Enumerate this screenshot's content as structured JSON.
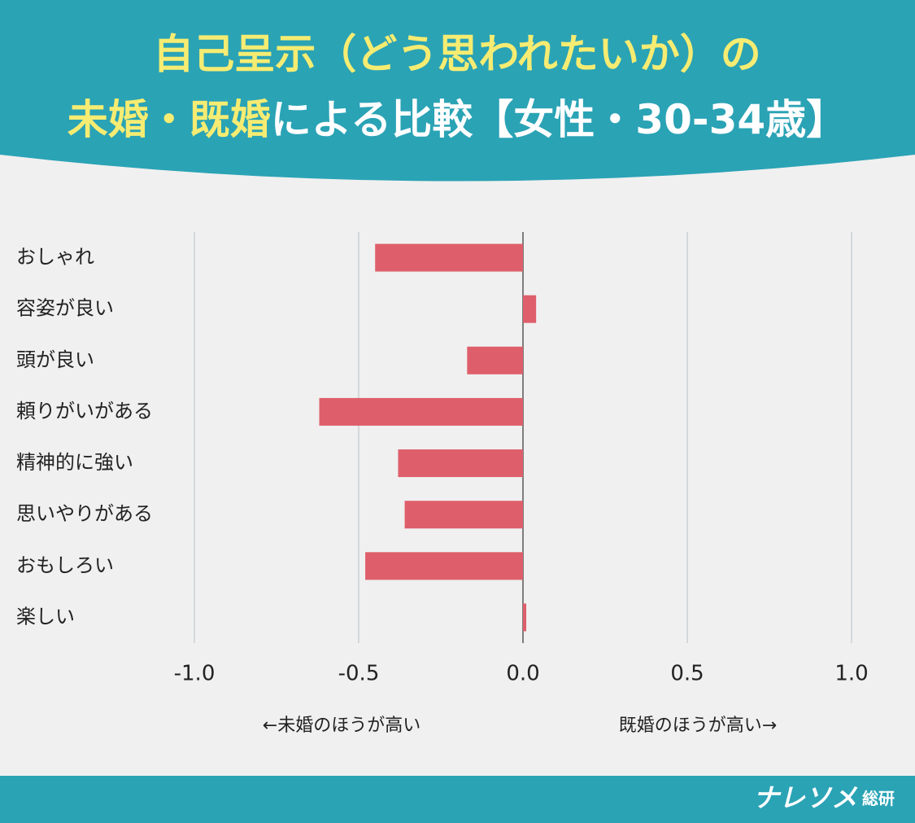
{
  "chart_data": {
    "type": "barh",
    "title": {
      "line1": "自己呈示（どう思われたいか）の",
      "line2_highlight": "未婚・既婚",
      "line2_rest": "による比較【女性・30-34歳】"
    },
    "categories": [
      "おしゃれ",
      "容姿が良い",
      "頭が良い",
      "頼りがいがある",
      "精神的に強い",
      "思いやりがある",
      "おもしろい",
      "楽しい"
    ],
    "values": [
      -0.45,
      0.04,
      -0.17,
      -0.62,
      -0.38,
      -0.36,
      -0.48,
      0.01
    ],
    "color": "#de5f6b",
    "xlim": [
      -1.0,
      1.0
    ],
    "xticks": [
      {
        "value": -1.0,
        "label": "-1.0"
      },
      -0.5,
      {
        "value": 0.0,
        "label": "0.0"
      },
      0.5,
      {
        "value": 1.0,
        "label": "1.0"
      }
    ],
    "grid": true,
    "annotations": {
      "left": "←未婚のほうが高い",
      "right": "既婚のほうが高い→"
    }
  },
  "footer": {
    "brand": "ナレソメ",
    "brand_suffix": "総研"
  }
}
